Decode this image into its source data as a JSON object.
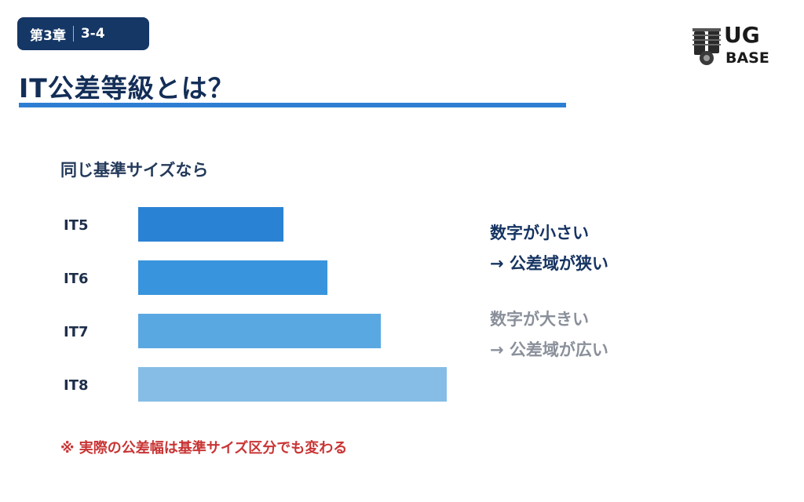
{
  "badge": {
    "chapter": "第3章",
    "section": "3-4"
  },
  "logo": {
    "text_top": "UG",
    "text_bottom": "BASE",
    "icon": "engine-icon"
  },
  "page": {
    "title": "IT公差等級とは？",
    "subtitle": "同じ基準サイズなら"
  },
  "chart_data": {
    "type": "bar",
    "orientation": "horizontal",
    "categories": [
      "IT5",
      "IT6",
      "IT7",
      "IT8"
    ],
    "values": [
      185,
      241,
      309,
      393
    ],
    "colors": [
      "#2a82d4",
      "#3894dc",
      "#5aa8e2",
      "#85bde6"
    ],
    "grid": false,
    "title": "",
    "xlabel": "",
    "ylabel": ""
  },
  "notes": {
    "small": {
      "line1": "数字が小さい",
      "line2": "→ 公差域が狭い",
      "color": "#163462"
    },
    "large": {
      "line1": "数字が大きい",
      "line2": "→ 公差域が広い",
      "color": "#8a909a"
    }
  },
  "footnote": "※ 実際の公差幅は基準サイズ区分でも変わる"
}
